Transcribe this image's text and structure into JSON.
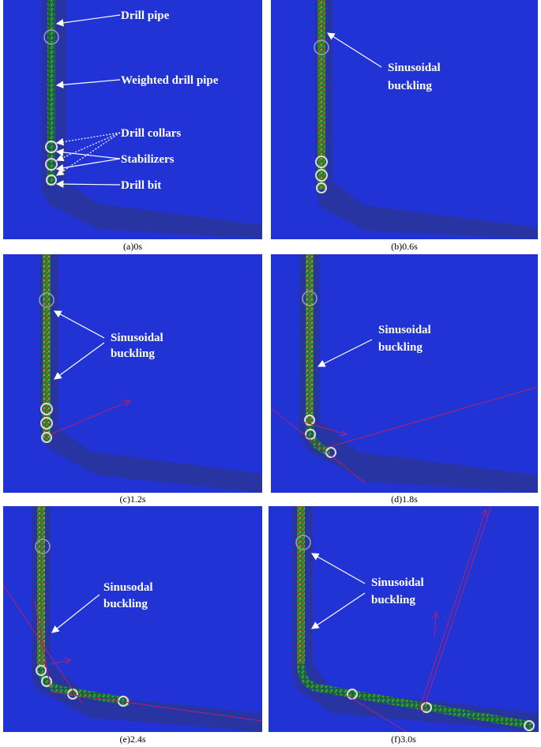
{
  "panels": [
    {
      "caption": "(a)0s",
      "labels": [
        "Drill pipe",
        "Weighted drill pipe",
        "Drill collars",
        "Stabilizers",
        "Drill bit"
      ]
    },
    {
      "caption": "(b)0.6s",
      "labels": [
        "Sinusoidal",
        "buckling"
      ]
    },
    {
      "caption": "(c)1.2s",
      "labels": [
        "Sinusoidal",
        "buckling"
      ]
    },
    {
      "caption": "(d)1.8s",
      "labels": [
        "Sinusoidal",
        "buckling"
      ]
    },
    {
      "caption": "(e)2.4s",
      "labels": [
        "Sinusodal",
        "buckling"
      ]
    },
    {
      "caption": "(f)3.0s",
      "labels": [
        "Sinusoidal",
        "buckling"
      ]
    }
  ],
  "colors": {
    "background": "#2233d6",
    "wellbore": "#2a3590",
    "arrow": "#ffffff",
    "vector": "#b0226a"
  }
}
